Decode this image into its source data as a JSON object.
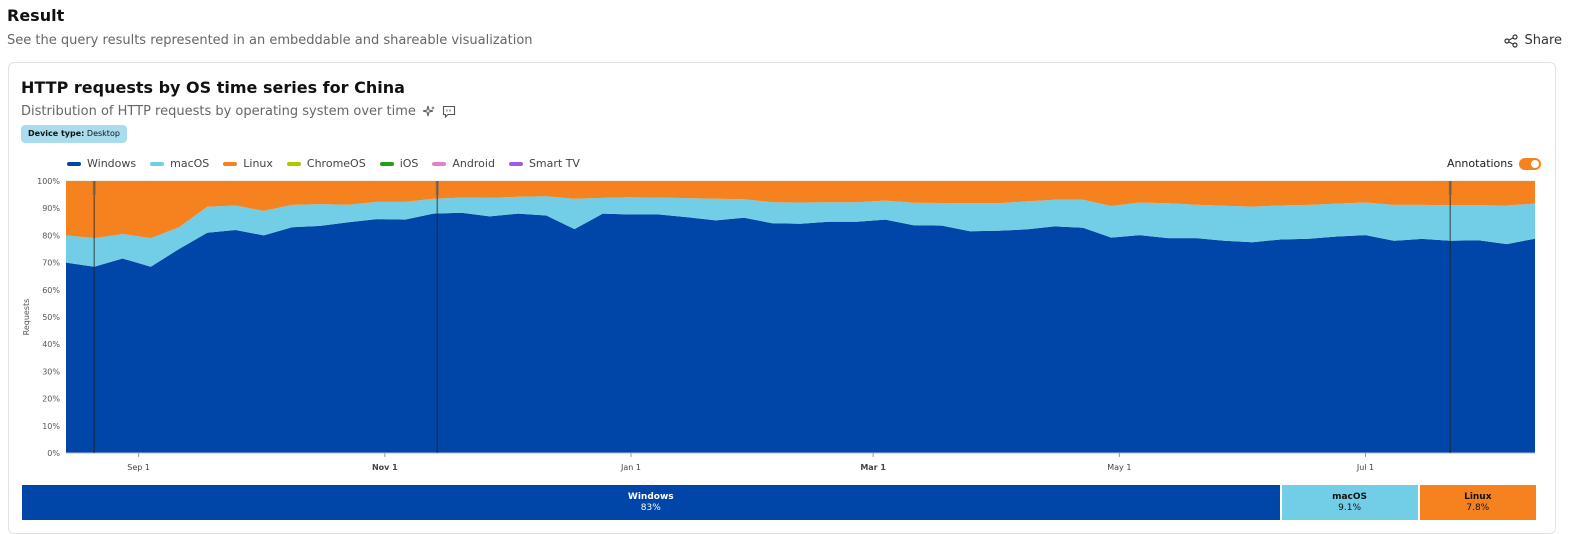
{
  "header": {
    "title": "Result",
    "subtitle": "See the query results represented in an embeddable and shareable visualization",
    "share_label": "Share"
  },
  "card": {
    "title": "HTTP requests by OS time series for China",
    "subtitle": "Distribution of HTTP requests by operating system over time",
    "badge_key": "Device type:",
    "badge_value": "Desktop",
    "annotations_label": "Annotations"
  },
  "legend": [
    {
      "name": "Windows",
      "color": "#0045a8"
    },
    {
      "name": "macOS",
      "color": "#72cde6"
    },
    {
      "name": "Linux",
      "color": "#f6821f"
    },
    {
      "name": "ChromeOS",
      "color": "#b5c400"
    },
    {
      "name": "iOS",
      "color": "#21a020"
    },
    {
      "name": "Android",
      "color": "#e67fc6"
    },
    {
      "name": "Smart TV",
      "color": "#9b5de5"
    }
  ],
  "chart_data": {
    "type": "area",
    "stacked": true,
    "ylabel": "Requests",
    "y_ticks": [
      "0%",
      "10%",
      "20%",
      "30%",
      "40%",
      "50%",
      "60%",
      "70%",
      "80%",
      "90%",
      "100%"
    ],
    "ylim": [
      0,
      100
    ],
    "x_ticks": [
      {
        "label": "Sep 1",
        "date": "2023-09-01",
        "bold": false
      },
      {
        "label": "Nov 1",
        "date": "2023-11-01",
        "bold": true
      },
      {
        "label": "Jan 1",
        "date": "2024-01-01",
        "bold": false
      },
      {
        "label": "Mar 1",
        "date": "2024-03-01",
        "bold": true
      },
      {
        "label": "May 1",
        "date": "2024-05-01",
        "bold": false
      },
      {
        "label": "Jul 1",
        "date": "2024-07-01",
        "bold": false
      }
    ],
    "x": [
      "2023-08-14",
      "2023-08-21",
      "2023-08-28",
      "2023-09-04",
      "2023-09-11",
      "2023-09-18",
      "2023-09-25",
      "2023-10-02",
      "2023-10-09",
      "2023-10-16",
      "2023-10-23",
      "2023-10-30",
      "2023-11-06",
      "2023-11-13",
      "2023-11-20",
      "2023-11-27",
      "2023-12-04",
      "2023-12-11",
      "2023-12-18",
      "2023-12-25",
      "2024-01-01",
      "2024-01-08",
      "2024-01-15",
      "2024-01-22",
      "2024-01-29",
      "2024-02-05",
      "2024-02-12",
      "2024-02-19",
      "2024-02-26",
      "2024-03-04",
      "2024-03-11",
      "2024-03-18",
      "2024-03-25",
      "2024-04-01",
      "2024-04-08",
      "2024-04-15",
      "2024-04-22",
      "2024-04-29",
      "2024-05-06",
      "2024-05-13",
      "2024-05-20",
      "2024-05-27",
      "2024-06-03",
      "2024-06-10",
      "2024-06-17",
      "2024-06-24",
      "2024-07-01",
      "2024-07-08",
      "2024-07-15",
      "2024-07-22",
      "2024-07-29",
      "2024-08-05",
      "2024-08-12"
    ],
    "series": [
      {
        "name": "Windows",
        "values": [
          70,
          68.5,
          71.5,
          68.5,
          75,
          81,
          82,
          80,
          83,
          83.5,
          84.8,
          86,
          85.8,
          88,
          88.3,
          87,
          88,
          87.3,
          82.3,
          88,
          87.7,
          87.7,
          86.7,
          85.5,
          86.5,
          84.5,
          84.3,
          85,
          85,
          85.8,
          83.7,
          83.6,
          81.5,
          81.7,
          82.2,
          83.3,
          82.8,
          79.2,
          80.1,
          79,
          79,
          78,
          77.5,
          78.5,
          78.8,
          79.6,
          80.1,
          78,
          78.7,
          78,
          78.2,
          76.8,
          78.8
        ]
      },
      {
        "name": "macOS",
        "values": [
          10,
          10.5,
          9,
          10.5,
          8,
          9.5,
          9,
          9,
          8.2,
          8,
          6.5,
          6.3,
          6.5,
          5.5,
          5.6,
          6.8,
          6.2,
          7.1,
          11.2,
          5.8,
          6.3,
          6.2,
          7,
          8,
          6.8,
          7.7,
          7.8,
          7.2,
          7.2,
          7,
          8.3,
          8.3,
          10.3,
          10.1,
          10.3,
          9.8,
          10.3,
          11.6,
          12,
          12.8,
          12.3,
          12.9,
          13.1,
          12.5,
          12.4,
          12.1,
          12,
          13.2,
          12.5,
          13.1,
          12.9,
          14.2,
          12.9
        ]
      },
      {
        "name": "Linux",
        "values": [
          20,
          21,
          19.5,
          21,
          17,
          9.5,
          9,
          11,
          8.8,
          8.5,
          8.7,
          7.7,
          7.7,
          6.5,
          6.1,
          6.2,
          5.8,
          5.6,
          6.5,
          6.2,
          6,
          6.1,
          6.3,
          6.5,
          6.7,
          7.8,
          7.9,
          7.8,
          7.8,
          7.2,
          8,
          8.1,
          8.2,
          8.2,
          7.5,
          6.9,
          6.9,
          9.2,
          7.9,
          8.2,
          8.7,
          9.1,
          9.4,
          9,
          8.8,
          8.3,
          7.9,
          8.8,
          8.8,
          8.9,
          8.9,
          9,
          8.3
        ]
      }
    ],
    "annotation_dates": [
      "2023-08-21",
      "2023-11-14",
      "2024-07-22"
    ],
    "summary": [
      {
        "name": "Windows",
        "label": "83%",
        "share": 83
      },
      {
        "name": "macOS",
        "label": "9.1%",
        "share": 9.1
      },
      {
        "name": "Linux",
        "label": "7.8%",
        "share": 7.8
      }
    ]
  }
}
